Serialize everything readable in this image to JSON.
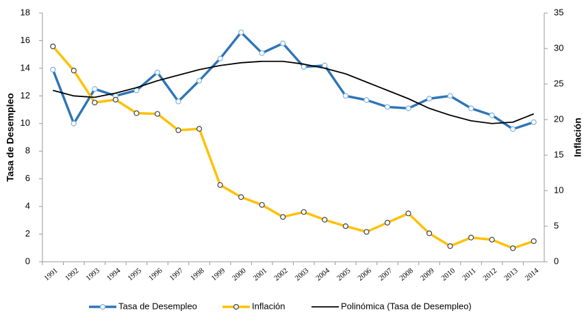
{
  "chart_data": {
    "type": "line",
    "categories": [
      "1991",
      "1992",
      "1993",
      "1994",
      "1995",
      "1996",
      "1997",
      "1998",
      "1999",
      "2000",
      "2001",
      "2002",
      "2003",
      "2004",
      "2005",
      "2006",
      "2007",
      "2008",
      "2009",
      "2010",
      "2011",
      "2012",
      "2013",
      "2014"
    ],
    "series": [
      {
        "name": "Tasa de Desempleo",
        "color": "#2e75b6",
        "marker_edge": "#7fb2e0",
        "markers": true,
        "values": [
          13.9,
          10.0,
          12.5,
          12.0,
          12.4,
          13.7,
          11.6,
          13.1,
          14.7,
          16.6,
          15.1,
          15.8,
          14.1,
          14.2,
          12.0,
          11.7,
          11.2,
          11.1,
          11.8,
          12.0,
          11.1,
          10.6,
          9.6,
          10.1
        ]
      },
      {
        "name": "Inflación",
        "color": "#ffc000",
        "marker_edge": "#404040",
        "markers": true,
        "axis": "y2",
        "values": [
          30.3,
          26.9,
          22.4,
          22.8,
          20.9,
          20.8,
          18.5,
          18.7,
          10.8,
          9.1,
          8.0,
          6.3,
          7.0,
          5.9,
          5.0,
          4.2,
          5.5,
          6.8,
          4.0,
          2.2,
          3.4,
          3.1,
          1.9,
          2.9
        ]
      },
      {
        "name": "Polinómica (Tasa de Desempleo)",
        "color": "#000000",
        "markers": false,
        "values": [
          12.4,
          12.0,
          11.9,
          12.2,
          12.6,
          13.1,
          13.5,
          13.9,
          14.2,
          14.4,
          14.5,
          14.5,
          14.3,
          14.0,
          13.6,
          13.0,
          12.4,
          11.8,
          11.1,
          10.6,
          10.2,
          10.0,
          10.1,
          10.7
        ]
      }
    ],
    "ylabel": "Tasa de Desempleo",
    "y2label": "Inflación",
    "ylim": [
      0,
      18
    ],
    "yticks": [
      0,
      2,
      4,
      6,
      8,
      10,
      12,
      14,
      16,
      18
    ],
    "y2lim": [
      0,
      35
    ],
    "y2ticks": [
      0,
      5,
      10,
      15,
      20,
      25,
      30,
      35
    ],
    "legend": "bottom"
  }
}
